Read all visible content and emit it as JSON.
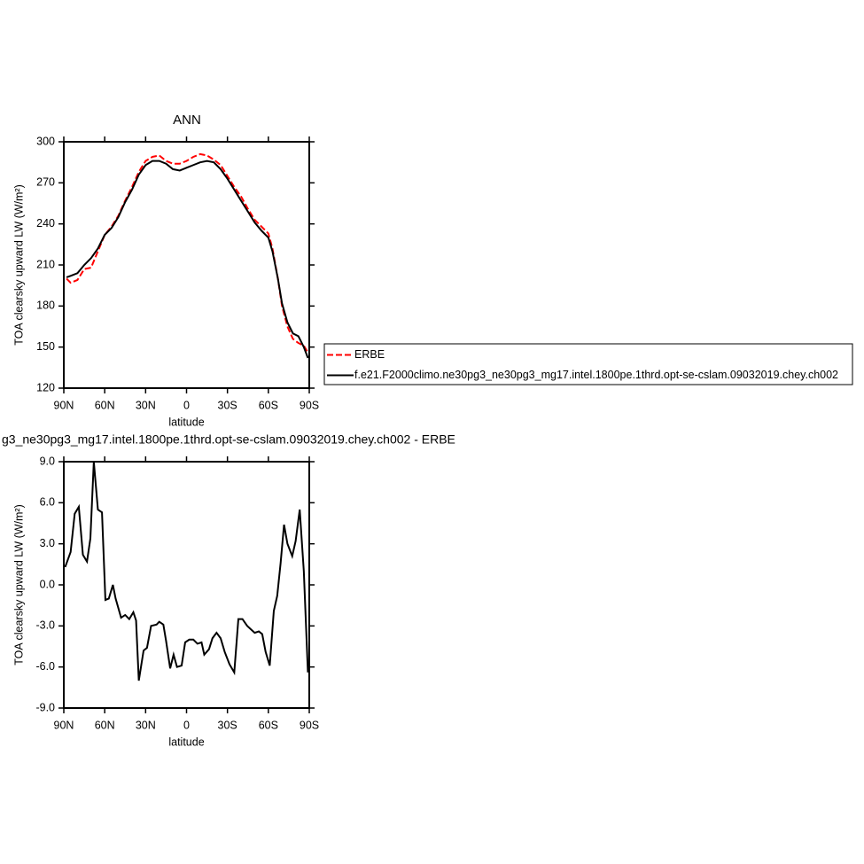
{
  "chart_data": [
    {
      "type": "line",
      "title": "ANN",
      "xlabel": "latitude",
      "ylabel": "TOA clearsky upward LW (W/m²)",
      "x": [
        88,
        85,
        80,
        75,
        70,
        65,
        60,
        55,
        50,
        45,
        40,
        35,
        30,
        25,
        20,
        15,
        10,
        5,
        0,
        -5,
        -10,
        -15,
        -20,
        -25,
        -30,
        -35,
        -40,
        -45,
        -50,
        -55,
        -60,
        -63,
        -67,
        -70,
        -74,
        -78,
        -82,
        -86,
        -89
      ],
      "series": [
        {
          "name": "ERBE",
          "color": "#ff0000",
          "line_style": "dashed",
          "values": [
            200,
            197,
            199,
            207,
            208,
            220,
            232,
            238,
            246,
            257,
            267,
            278,
            286,
            289,
            290,
            286,
            284,
            284,
            286,
            289,
            291,
            290,
            287,
            283,
            275,
            267,
            260,
            251,
            243,
            238,
            233,
            222,
            200,
            180,
            165,
            156,
            153,
            151,
            146
          ]
        },
        {
          "name": "f.e21.F2000climo.ne30pg3_ne30pg3_mg17.intel.1800pe.1thrd.opt-se-cslam.09032019.chey.ch002",
          "color": "#000000",
          "line_style": "solid",
          "values": [
            201,
            202,
            204,
            210,
            215,
            222,
            232,
            237,
            245,
            256,
            265,
            276,
            283,
            286,
            286,
            284,
            280,
            279,
            281,
            283,
            285,
            286,
            285,
            280,
            273,
            265,
            257,
            249,
            241,
            235,
            230,
            220,
            200,
            182,
            168,
            160,
            158,
            150,
            142
          ]
        }
      ],
      "xlim": [
        90,
        -90
      ],
      "xticks": [
        {
          "value": 90,
          "label": "90N"
        },
        {
          "value": 60,
          "label": "60N"
        },
        {
          "value": 30,
          "label": "30N"
        },
        0,
        {
          "value": -30,
          "label": "30S"
        },
        {
          "value": -60,
          "label": "60S"
        },
        {
          "value": -90,
          "label": "90S"
        }
      ],
      "ylim": [
        120,
        300
      ],
      "yticks": [
        120,
        150,
        180,
        210,
        240,
        270,
        300
      ],
      "legend": "right",
      "grid": false
    },
    {
      "type": "line",
      "title": "g3_ne30pg3_mg17.intel.1800pe.1thrd.opt-se-cslam.09032019.chey.ch002 - ERBE",
      "xlabel": "latitude",
      "ylabel": "TOA clearsky upward LW (W/m²)",
      "x": [
        89,
        85,
        82,
        79,
        76,
        73,
        70.5,
        68,
        65,
        62,
        59.5,
        57,
        54,
        52,
        48,
        45,
        42,
        39,
        37,
        35,
        31.5,
        29,
        26,
        22,
        20,
        17,
        15,
        12,
        9.5,
        7,
        3.6,
        1,
        -2,
        -5,
        -8,
        -11,
        -13,
        -16.5,
        -19,
        -22,
        -25,
        -28,
        -31.5,
        -35,
        -38,
        -41,
        -44.5,
        -50,
        -53,
        -55.5,
        -58,
        -61,
        -64,
        -66.5,
        -69,
        -71.5,
        -74,
        -77.5,
        -80,
        -83,
        -86,
        -89
      ],
      "series": [
        {
          "color": "#000000",
          "line_style": "solid",
          "values": [
            1.3,
            2.4,
            5.2,
            5.7,
            2.2,
            1.7,
            3.4,
            9.0,
            5.5,
            5.3,
            -1.1,
            -1.0,
            0.0,
            -1.0,
            -2.4,
            -2.2,
            -2.5,
            -2.0,
            -2.6,
            -7.0,
            -4.8,
            -4.6,
            -3.0,
            -2.9,
            -2.7,
            -2.9,
            -4.1,
            -6.1,
            -5.1,
            -6.0,
            -5.9,
            -4.2,
            -4.0,
            -4.0,
            -4.3,
            -4.2,
            -5.1,
            -4.7,
            -3.9,
            -3.5,
            -3.9,
            -4.9,
            -5.8,
            -6.4,
            -2.5,
            -2.5,
            -3.0,
            -3.5,
            -3.4,
            -3.6,
            -4.9,
            -5.9,
            -1.9,
            -0.8,
            1.6,
            4.4,
            3.0,
            2.1,
            3.2,
            5.5,
            1.0,
            -6.4
          ]
        }
      ],
      "xlim": [
        90,
        -90
      ],
      "xticks": [
        {
          "value": 90,
          "label": "90N"
        },
        {
          "value": 60,
          "label": "60N"
        },
        {
          "value": 30,
          "label": "30N"
        },
        0,
        {
          "value": -30,
          "label": "30S"
        },
        {
          "value": -60,
          "label": "60S"
        },
        {
          "value": -90,
          "label": "90S"
        }
      ],
      "ylim": [
        -9,
        9
      ],
      "yticks": [
        {
          "value": -9,
          "label": "-9.0"
        },
        {
          "value": -6,
          "label": "-6.0"
        },
        {
          "value": -3,
          "label": "-3.0"
        },
        {
          "value": 0,
          "label": "0.0"
        },
        {
          "value": 3,
          "label": "3.0"
        },
        {
          "value": 6,
          "label": "6.0"
        },
        {
          "value": 9,
          "label": "9.0"
        }
      ],
      "grid": false
    }
  ]
}
